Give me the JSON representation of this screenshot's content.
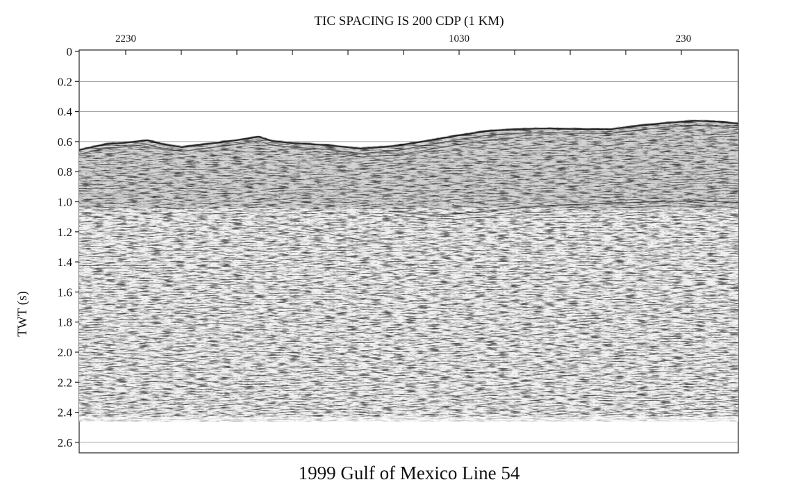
{
  "figure": {
    "top_title": "TIC SPACING IS 200 CDP (1 KM)",
    "bottom_title": "1999 Gulf of Mexico Line 54",
    "y_axis_label": "TWT (s)",
    "top_tick_labels": [
      "2230",
      "1030",
      "230"
    ],
    "y_tick_labels": [
      "0",
      "0.2",
      "0.4",
      "0.6",
      "0.8",
      "1.0",
      "1.2",
      "1.4",
      "1.6",
      "1.8",
      "2.0",
      "2.2",
      "2.4",
      "2.6"
    ]
  },
  "section": {
    "type": "seismic reflection profile",
    "y_range_s": [
      0,
      2.7
    ],
    "data_bottom_s": 2.48,
    "gridlines_s": [
      0.2,
      0.4,
      0.6,
      0.8,
      1.0,
      1.2,
      1.4,
      1.6,
      1.8,
      2.0,
      2.2,
      2.4,
      2.6
    ],
    "colors": {
      "ink": "#111111",
      "grid": "#888888",
      "background": "#ffffff"
    }
  }
}
